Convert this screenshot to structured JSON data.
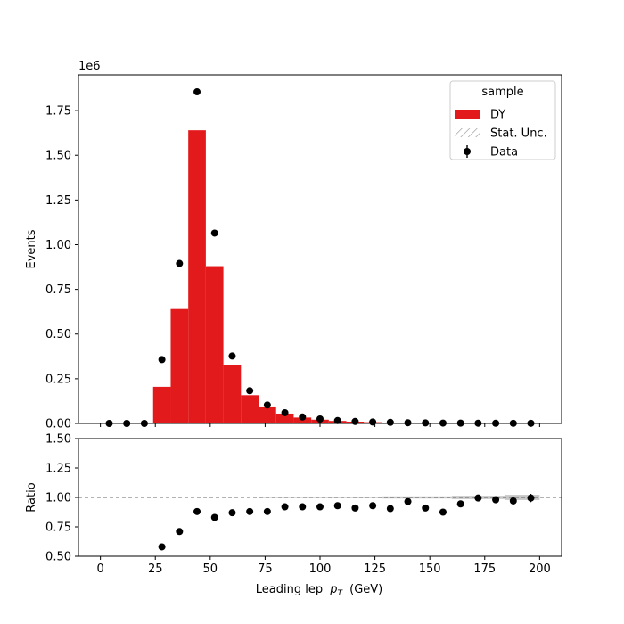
{
  "chart_data": {
    "type": "bar",
    "x_label": "Leading lep",
    "x_label_symbol": "p",
    "x_label_subscript": "T",
    "x_label_unit": "(GeV)",
    "xlim": [
      -10,
      210
    ],
    "x_ticks": [
      0,
      25,
      50,
      75,
      100,
      125,
      150,
      175,
      200
    ],
    "bin_edges": [
      0,
      8,
      16,
      24,
      32,
      40,
      48,
      56,
      64,
      72,
      80,
      88,
      96,
      104,
      112,
      120,
      128,
      136,
      144,
      152,
      160,
      168,
      176,
      184,
      192,
      200
    ],
    "top_panel": {
      "ylabel": "Events",
      "offset_text": "1e6",
      "ylim": [
        0,
        1.95
      ],
      "y_ticks": [
        "0.00",
        "0.25",
        "0.50",
        "0.75",
        "1.00",
        "1.25",
        "1.50",
        "1.75"
      ],
      "series": [
        {
          "name": "DY",
          "type": "stacked_hist",
          "color": "#e31a1c",
          "values": [
            0,
            0,
            0,
            0.205,
            0.64,
            1.64,
            0.88,
            0.325,
            0.158,
            0.09,
            0.055,
            0.033,
            0.021,
            0.014,
            0.01,
            0.007,
            0.005,
            0.004,
            0.003,
            0.002,
            0.002,
            0.0015,
            0.001,
            0.001,
            0.001
          ]
        },
        {
          "name": "Data",
          "type": "errorbar",
          "color": "#000000",
          "x": [
            4,
            12,
            20,
            28,
            36,
            44,
            52,
            60,
            68,
            76,
            84,
            92,
            100,
            108,
            116,
            124,
            132,
            140,
            148,
            156,
            164,
            172,
            180,
            188,
            196
          ],
          "values": [
            0,
            0,
            0,
            0.357,
            0.895,
            1.855,
            1.065,
            0.377,
            0.183,
            0.103,
            0.06,
            0.036,
            0.025,
            0.016,
            0.011,
            0.008,
            0.006,
            0.004,
            0.003,
            0.002,
            0.0018,
            0.0014,
            0.0011,
            0.0009,
            0.0008
          ]
        }
      ]
    },
    "ratio_panel": {
      "ylabel": "Ratio",
      "ylim": [
        0.5,
        1.5
      ],
      "y_ticks": [
        "0.50",
        "0.75",
        "1.00",
        "1.25",
        "1.50"
      ],
      "reference_line": 1.0,
      "x": [
        28,
        36,
        44,
        52,
        60,
        68,
        76,
        84,
        92,
        100,
        108,
        116,
        124,
        132,
        140,
        148,
        156,
        164,
        172,
        180,
        188,
        196
      ],
      "values": [
        0.58,
        0.71,
        0.88,
        0.83,
        0.87,
        0.88,
        0.88,
        0.92,
        0.92,
        0.92,
        0.93,
        0.91,
        0.93,
        0.905,
        0.965,
        0.91,
        0.875,
        0.945,
        0.995,
        0.98,
        0.97,
        0.995
      ],
      "errors": [
        0,
        0,
        0,
        0,
        0,
        0,
        0,
        0,
        0,
        0,
        0,
        0,
        0,
        0,
        0,
        0,
        0,
        0,
        0.02,
        0.025,
        0.03,
        0.035
      ],
      "stat_unc_bins": [
        {
          "lo": 72,
          "hi": 96,
          "half": 0.003
        },
        {
          "lo": 96,
          "hi": 128,
          "half": 0.005
        },
        {
          "lo": 128,
          "hi": 160,
          "half": 0.009
        },
        {
          "lo": 160,
          "hi": 184,
          "half": 0.014
        },
        {
          "lo": 184,
          "hi": 200,
          "half": 0.022
        }
      ]
    },
    "legend": {
      "title": "sample",
      "placement": "top-right",
      "entries": [
        {
          "label": "DY",
          "kind": "patch",
          "color": "#e31a1c"
        },
        {
          "label": "Stat. Unc.",
          "kind": "hatch",
          "color": "#888888"
        },
        {
          "label": "Data",
          "kind": "errorbar",
          "color": "#000000"
        }
      ]
    }
  }
}
